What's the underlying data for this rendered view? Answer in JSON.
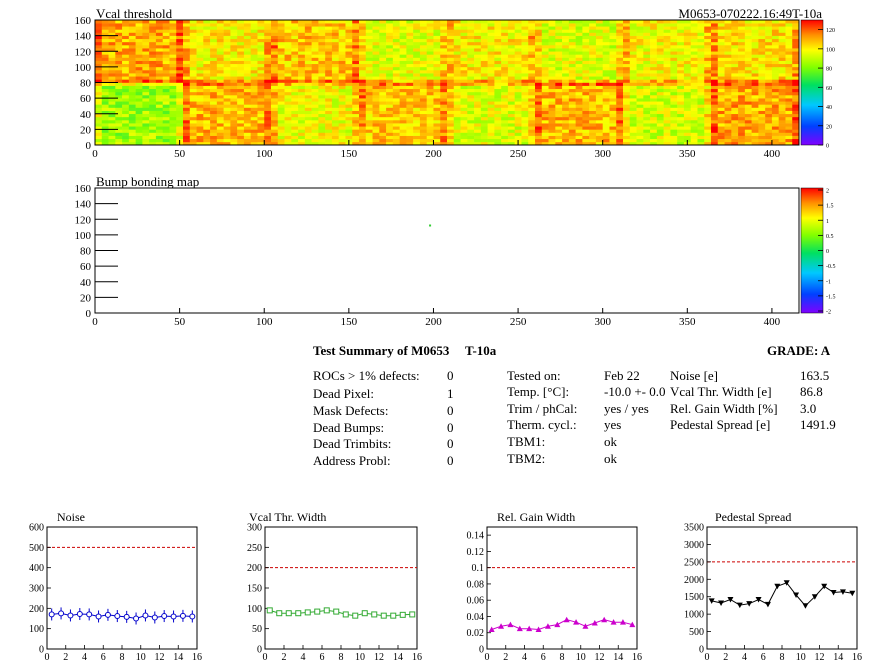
{
  "header": {
    "map1_title": "Vcal threshold",
    "module_id": "M0653-070222.16:49T-10a",
    "map2_title": "Bump bonding map"
  },
  "summary": {
    "title": "Test Summary of M0653",
    "temp_label": "T-10a",
    "grade": "GRADE:  A",
    "defects": [
      {
        "label": "ROCs > 1% defects:",
        "value": "0"
      },
      {
        "label": "Dead Pixel:",
        "value": "1"
      },
      {
        "label": "Mask Defects:",
        "value": "0"
      },
      {
        "label": "Dead Bumps:",
        "value": "0"
      },
      {
        "label": "Dead Trimbits:",
        "value": "0"
      },
      {
        "label": "Address Probl:",
        "value": "0"
      }
    ],
    "conditions": [
      {
        "label": "Tested on:",
        "value": "Feb 22"
      },
      {
        "label": "Temp. [°C]:",
        "value": "-10.0 +- 0.0"
      },
      {
        "label": "Trim / phCal:",
        "value": "yes / yes"
      },
      {
        "label": "Therm. cycl.:",
        "value": "yes"
      },
      {
        "label": "TBM1:",
        "value": "ok"
      },
      {
        "label": "TBM2:",
        "value": "ok"
      }
    ],
    "results": [
      {
        "label": "Noise [e]",
        "value": "163.5"
      },
      {
        "label": "Vcal Thr. Width [e]",
        "value": "86.8"
      },
      {
        "label": "Rel. Gain Width [%]",
        "value": "3.0"
      },
      {
        "label": "Pedestal Spread [e]",
        "value": "1491.9"
      }
    ]
  },
  "chart_data": [
    {
      "type": "heatmap",
      "title": "Vcal threshold",
      "xlim": [
        0,
        416
      ],
      "ylim": [
        0,
        160
      ],
      "xticks": [
        0,
        50,
        100,
        150,
        200,
        250,
        300,
        350,
        400
      ],
      "yticks": [
        0,
        20,
        40,
        60,
        80,
        100,
        120,
        140,
        160
      ],
      "zlim": [
        0,
        130
      ],
      "zticks": [
        0,
        20,
        40,
        60,
        80,
        100,
        120
      ],
      "roc_levels_bottom": [
        85,
        108,
        97,
        106,
        95,
        108,
        93,
        110
      ],
      "roc_levels_top": [
        110,
        100,
        106,
        95,
        100,
        94,
        98,
        102
      ]
    },
    {
      "type": "heatmap",
      "title": "Bump bonding map",
      "xlim": [
        0,
        416
      ],
      "ylim": [
        0,
        160
      ],
      "xticks": [
        0,
        50,
        100,
        150,
        200,
        250,
        300,
        350,
        400
      ],
      "yticks": [
        0,
        20,
        40,
        60,
        80,
        100,
        120,
        140,
        160
      ],
      "zlim": [
        -2,
        2
      ],
      "zticks": [
        "2",
        "1.5",
        "1",
        "0.5",
        "0",
        "-0.5",
        "-1",
        "-1.5",
        "-2"
      ],
      "points": [
        {
          "x": 198,
          "y": 112
        }
      ]
    },
    {
      "type": "line",
      "title": "Noise",
      "marker": "circle",
      "color": "#0000cc",
      "ylim": [
        0,
        600
      ],
      "yticks": [
        0,
        100,
        200,
        300,
        400,
        500,
        600
      ],
      "xlim": [
        0,
        16
      ],
      "xticks": [
        0,
        2,
        4,
        6,
        8,
        10,
        12,
        14,
        16
      ],
      "reference": 500,
      "x": [
        0,
        1,
        2,
        3,
        4,
        5,
        6,
        7,
        8,
        9,
        10,
        11,
        12,
        13,
        14,
        15
      ],
      "values": [
        170,
        175,
        165,
        172,
        170,
        160,
        168,
        162,
        158,
        150,
        165,
        155,
        162,
        160,
        163,
        160
      ]
    },
    {
      "type": "line",
      "title": "Vcal Thr. Width",
      "marker": "square",
      "color": "#33aa33",
      "ylim": [
        0,
        300
      ],
      "yticks": [
        0,
        50,
        100,
        150,
        200,
        250,
        300
      ],
      "xlim": [
        0,
        16
      ],
      "xticks": [
        0,
        2,
        4,
        6,
        8,
        10,
        12,
        14,
        16
      ],
      "reference": 200,
      "x": [
        0,
        1,
        2,
        3,
        4,
        5,
        6,
        7,
        8,
        9,
        10,
        11,
        12,
        13,
        14,
        15
      ],
      "values": [
        95,
        88,
        88,
        88,
        90,
        92,
        95,
        92,
        85,
        82,
        88,
        85,
        82,
        82,
        84,
        85
      ]
    },
    {
      "type": "line",
      "title": "Rel. Gain Width",
      "marker": "triangle",
      "color": "#cc00cc",
      "ylim": [
        0,
        0.15
      ],
      "yticks": [
        0,
        0.02,
        0.04,
        0.06,
        0.08,
        0.1,
        0.12,
        0.14
      ],
      "ytick_labels": [
        "0",
        "0.02",
        "0.04",
        "0.06",
        "0.08",
        "0.1",
        "0.12",
        "0.14"
      ],
      "xlim": [
        0,
        16
      ],
      "xticks": [
        0,
        2,
        4,
        6,
        8,
        10,
        12,
        14,
        16
      ],
      "reference": 0.1,
      "x": [
        0,
        1,
        2,
        3,
        4,
        5,
        6,
        7,
        8,
        9,
        10,
        11,
        12,
        13,
        14,
        15
      ],
      "values": [
        0.024,
        0.028,
        0.03,
        0.025,
        0.025,
        0.024,
        0.028,
        0.03,
        0.036,
        0.033,
        0.028,
        0.032,
        0.036,
        0.033,
        0.033,
        0.03
      ]
    },
    {
      "type": "line",
      "title": "Pedestal Spread",
      "marker": "triangle-down",
      "color": "#000000",
      "ylim": [
        0,
        3500
      ],
      "yticks": [
        0,
        500,
        1000,
        1500,
        2000,
        2500,
        3000,
        3500
      ],
      "xlim": [
        0,
        16
      ],
      "xticks": [
        0,
        2,
        4,
        6,
        8,
        10,
        12,
        14,
        16
      ],
      "reference": 2500,
      "x": [
        0,
        1,
        2,
        3,
        4,
        5,
        6,
        7,
        8,
        9,
        10,
        11,
        12,
        13,
        14,
        15
      ],
      "values": [
        1380,
        1320,
        1420,
        1260,
        1300,
        1420,
        1280,
        1800,
        1900,
        1550,
        1240,
        1500,
        1800,
        1620,
        1640,
        1600
      ]
    }
  ]
}
